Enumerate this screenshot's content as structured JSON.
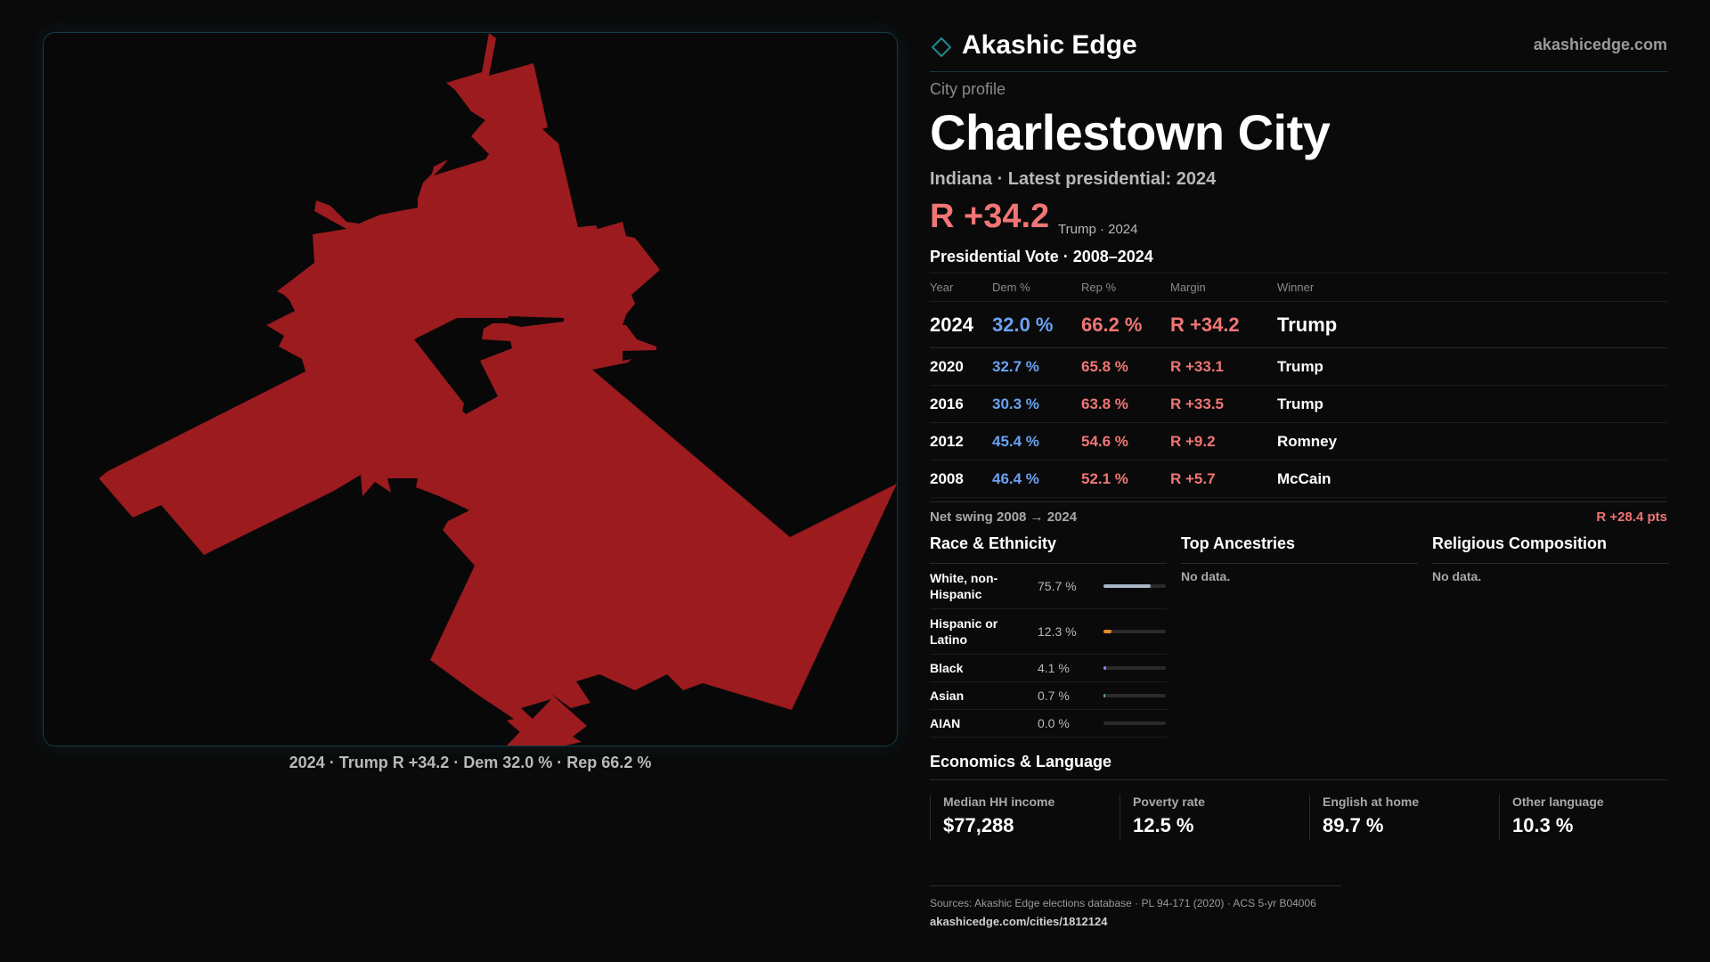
{
  "brand": {
    "name": "Akashic Edge",
    "url": "akashicedge.com"
  },
  "profile": {
    "kicker": "City profile",
    "title": "Charlestown City",
    "subline": "Indiana · Latest presidential: 2024",
    "margin": "R +34.2",
    "margin_note": "Trump · 2024"
  },
  "map": {
    "caption": "2024 · Trump R +34.2 · Dem 32.0 % · Rep 66.2 %",
    "fill_color": "#9b1b1e"
  },
  "vote_table": {
    "title": "Presidential Vote · 2008–2024",
    "headers": [
      "Year",
      "Dem %",
      "Rep %",
      "Margin",
      "Winner"
    ],
    "rows": [
      {
        "year": "2024",
        "dem": "32.0 %",
        "rep": "66.2 %",
        "margin": "R +34.2",
        "winner": "Trump"
      },
      {
        "year": "2020",
        "dem": "32.7 %",
        "rep": "65.8 %",
        "margin": "R +33.1",
        "winner": "Trump"
      },
      {
        "year": "2016",
        "dem": "30.3 %",
        "rep": "63.8 %",
        "margin": "R +33.5",
        "winner": "Trump"
      },
      {
        "year": "2012",
        "dem": "45.4 %",
        "rep": "54.6 %",
        "margin": "R +9.2",
        "winner": "Romney"
      },
      {
        "year": "2008",
        "dem": "46.4 %",
        "rep": "52.1 %",
        "margin": "R +5.7",
        "winner": "McCain"
      }
    ],
    "swing_label": "Net swing 2008 → 2024",
    "swing_value": "R +28.4 pts"
  },
  "race": {
    "title": "Race & Ethnicity",
    "rows": [
      {
        "label": "White, non-Hispanic",
        "pct": "75.7 %",
        "value": 75.7,
        "color": "#a9b6c8"
      },
      {
        "label": "Hispanic or Latino",
        "pct": "12.3 %",
        "value": 12.3,
        "color": "#e58a2a"
      },
      {
        "label": "Black",
        "pct": "4.1 %",
        "value": 4.1,
        "color": "#9b7be0"
      },
      {
        "label": "Asian",
        "pct": "0.7 %",
        "value": 0.7,
        "color": "#6aa2a0"
      },
      {
        "label": "AIAN",
        "pct": "0.0 %",
        "value": 0.0,
        "color": "#888888"
      }
    ]
  },
  "ancestries": {
    "title": "Top Ancestries",
    "empty": "No data."
  },
  "religion": {
    "title": "Religious Composition",
    "empty": "No data."
  },
  "economics": {
    "title": "Economics & Language",
    "cards": [
      {
        "label": "Median HH income",
        "value": "$77,288"
      },
      {
        "label": "Poverty rate",
        "value": "12.5 %"
      },
      {
        "label": "English at home",
        "value": "89.7 %"
      },
      {
        "label": "Other language",
        "value": "10.3 %"
      }
    ]
  },
  "sources": {
    "text": "Sources: Akashic Edge elections database · PL 94-171 (2020) · ACS 5-yr B04006",
    "url": "akashicedge.com/cities/1812124"
  }
}
